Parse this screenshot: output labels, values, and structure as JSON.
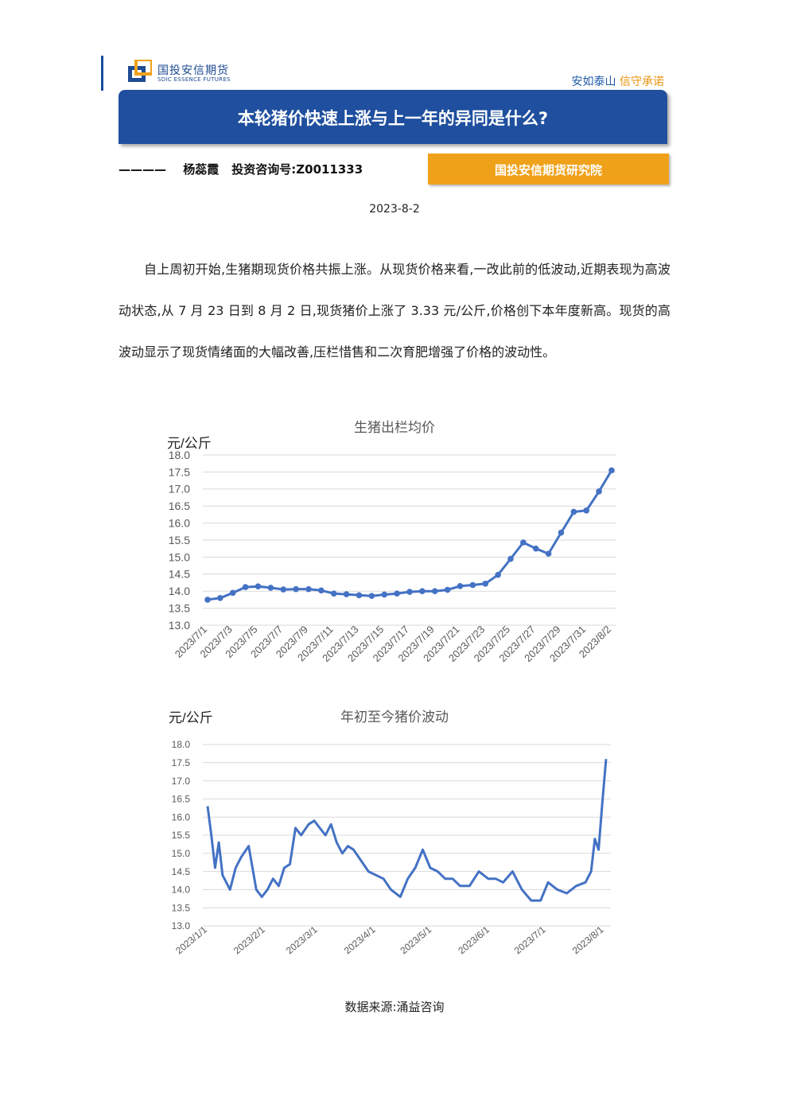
{
  "header": {
    "logo_cn": "国投安信期货",
    "logo_en": "SDIC ESSENCE FUTURES",
    "slogan_part1": "安如泰山",
    "slogan_part2": "信守承诺"
  },
  "title": "本轮猪价快速上涨与上一年的异同是什么?",
  "author": {
    "dash": "———— ",
    "name": "杨蕊霞",
    "license": "投资咨询号:Z0011333"
  },
  "institute": "国投安信期货研究院",
  "date": "2023-8-2",
  "paragraph": "自上周初开始,生猪期现货价格共振上涨。从现货价格来看,一改此前的低波动,近期表现为高波动状态,从 7 月 23 日到 8 月 2 日,现货猪价上涨了 3.33 元/公斤,价格创下本年度新高。现货的高波动显示了现货情绪面的大幅改善,压栏惜售和二次育肥增强了价格的波动性。",
  "source": "数据来源:涌益咨询",
  "colors": {
    "series": "#4472c4",
    "grid": "#d9d9d9",
    "title_bar": "#1f4f9e",
    "accent": "#f0a11a"
  },
  "chart_data": [
    {
      "type": "line",
      "title": "生猪出栏均价",
      "ylabel": "元/公斤",
      "ylim": [
        13.0,
        18.0
      ],
      "yticks": [
        "13.0",
        "13.5",
        "14.0",
        "14.5",
        "15.0",
        "15.5",
        "16.0",
        "16.5",
        "17.0",
        "17.5",
        "18.0"
      ],
      "xtick_labels": [
        "2023/7/1",
        "2023/7/3",
        "2023/7/5",
        "2023/7/7",
        "2023/7/9",
        "2023/7/11",
        "2023/7/13",
        "2023/7/15",
        "2023/7/17",
        "2023/7/19",
        "2023/7/21",
        "2023/7/23",
        "2023/7/25",
        "2023/7/27",
        "2023/7/29",
        "2023/7/31",
        "2023/8/2"
      ],
      "x": [
        "2023/7/1",
        "2023/7/2",
        "2023/7/3",
        "2023/7/4",
        "2023/7/5",
        "2023/7/6",
        "2023/7/7",
        "2023/7/8",
        "2023/7/9",
        "2023/7/10",
        "2023/7/11",
        "2023/7/12",
        "2023/7/13",
        "2023/7/14",
        "2023/7/15",
        "2023/7/16",
        "2023/7/17",
        "2023/7/18",
        "2023/7/19",
        "2023/7/20",
        "2023/7/21",
        "2023/7/22",
        "2023/7/23",
        "2023/7/24",
        "2023/7/25",
        "2023/7/26",
        "2023/7/27",
        "2023/7/28",
        "2023/7/29",
        "2023/7/30",
        "2023/7/31",
        "2023/8/1",
        "2023/8/2"
      ],
      "values": [
        13.75,
        13.8,
        13.95,
        14.12,
        14.14,
        14.1,
        14.05,
        14.06,
        14.06,
        14.02,
        13.93,
        13.91,
        13.88,
        13.86,
        13.9,
        13.93,
        13.98,
        14.0,
        14.0,
        14.04,
        14.15,
        14.18,
        14.22,
        14.48,
        14.95,
        15.43,
        15.25,
        15.1,
        15.72,
        16.33,
        16.37,
        16.93,
        17.55
      ],
      "grid": true
    },
    {
      "type": "line",
      "title": "年初至今猪价波动",
      "ylabel": "元/公斤",
      "ylim": [
        13.0,
        18.0
      ],
      "yticks": [
        "13.0",
        "13.5",
        "14.0",
        "14.5",
        "15.0",
        "15.5",
        "16.0",
        "16.5",
        "17.0",
        "17.5",
        "18.0"
      ],
      "xtick_labels": [
        "2023/1/1",
        "2023/2/1",
        "2023/3/1",
        "2023/4/1",
        "2023/5/1",
        "2023/6/1",
        "2023/7/1",
        "2023/8/1"
      ],
      "x": [
        "2023/1/1",
        "2023/1/3",
        "2023/1/5",
        "2023/1/7",
        "2023/1/9",
        "2023/1/11",
        "2023/1/13",
        "2023/1/16",
        "2023/1/19",
        "2023/1/23",
        "2023/1/27",
        "2023/1/30",
        "2023/2/2",
        "2023/2/5",
        "2023/2/8",
        "2023/2/11",
        "2023/2/14",
        "2023/2/17",
        "2023/2/20",
        "2023/2/24",
        "2023/2/27",
        "2023/3/2",
        "2023/3/5",
        "2023/3/8",
        "2023/3/11",
        "2023/3/14",
        "2023/3/17",
        "2023/3/20",
        "2023/3/24",
        "2023/3/28",
        "2023/4/1",
        "2023/4/5",
        "2023/4/9",
        "2023/4/14",
        "2023/4/18",
        "2023/4/22",
        "2023/4/26",
        "2023/4/30",
        "2023/5/4",
        "2023/5/8",
        "2023/5/12",
        "2023/5/16",
        "2023/5/21",
        "2023/5/26",
        "2023/5/31",
        "2023/6/4",
        "2023/6/8",
        "2023/6/13",
        "2023/6/18",
        "2023/6/23",
        "2023/6/28",
        "2023/7/2",
        "2023/7/7",
        "2023/7/12",
        "2023/7/17",
        "2023/7/22",
        "2023/7/25",
        "2023/7/27",
        "2023/7/29",
        "2023/7/31",
        "2023/8/2"
      ],
      "values": [
        16.3,
        15.5,
        14.6,
        15.3,
        14.4,
        14.2,
        14.0,
        14.6,
        14.9,
        15.2,
        14.0,
        13.8,
        14.0,
        14.3,
        14.1,
        14.6,
        14.7,
        15.7,
        15.5,
        15.8,
        15.9,
        15.7,
        15.5,
        15.8,
        15.3,
        15.0,
        15.2,
        15.1,
        14.8,
        14.5,
        14.4,
        14.3,
        14.0,
        13.8,
        14.3,
        14.6,
        15.1,
        14.6,
        14.5,
        14.3,
        14.3,
        14.1,
        14.1,
        14.5,
        14.3,
        14.3,
        14.2,
        14.5,
        14.0,
        13.7,
        13.7,
        14.2,
        14.0,
        13.9,
        14.1,
        14.2,
        14.5,
        15.4,
        15.1,
        16.4,
        17.6
      ],
      "grid": true
    }
  ]
}
